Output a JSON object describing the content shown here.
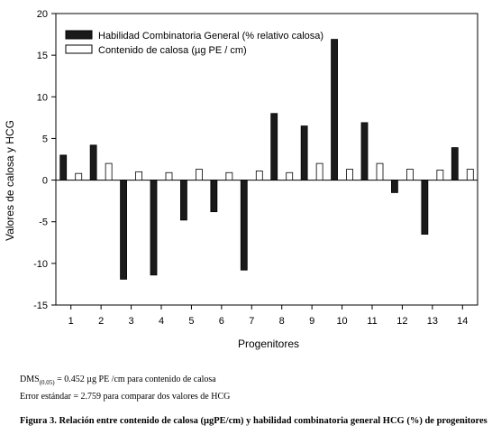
{
  "chart_data": {
    "type": "bar",
    "ylabel": "Valores de calosa  y HCG",
    "xlabel": "Progenitores",
    "ylim": [
      -15,
      20
    ],
    "yticks": [
      -15,
      -10,
      -5,
      0,
      5,
      10,
      15,
      20
    ],
    "categories": [
      "1",
      "2",
      "3",
      "4",
      "5",
      "6",
      "7",
      "8",
      "9",
      "10",
      "11",
      "12",
      "13",
      "14"
    ],
    "series": [
      {
        "name": "Habilidad Combinatoria General (% relativo  calosa)",
        "color": "#1a1a1a",
        "values": [
          3.0,
          4.2,
          -11.9,
          -11.4,
          -4.8,
          -3.8,
          -10.8,
          8.0,
          6.5,
          16.9,
          6.9,
          -1.5,
          -6.5,
          3.9
        ]
      },
      {
        "name": "Contenido de calosa (µg PE / cm)",
        "color": "#ffffff",
        "values": [
          0.8,
          2.0,
          1.0,
          0.9,
          1.3,
          0.9,
          1.1,
          0.9,
          2.0,
          1.3,
          2.0,
          1.3,
          1.2,
          1.3
        ]
      }
    ],
    "legend_position": "top-left",
    "grid": false
  },
  "notes": {
    "dms_prefix": "DMS",
    "dms_sub": "(0.05)",
    "dms_rest": " = 0.452 µg PE /cm para contenido de calosa",
    "error": "Error estándar = 2.759 para comparar dos valores de HCG"
  },
  "caption": "Figura 3. Relación entre contenido de calosa (µgPE/cm) y habilidad combinatoria general HCG (%) de progenitores"
}
